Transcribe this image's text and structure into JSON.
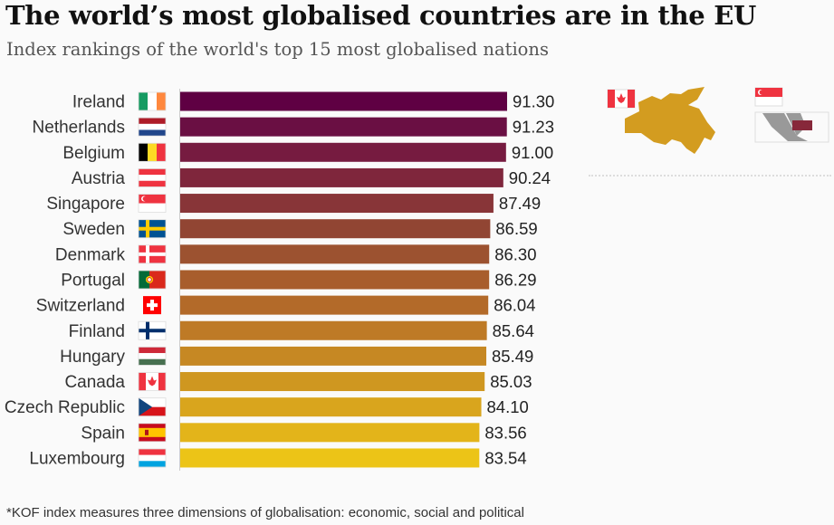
{
  "title": "The world’s most globalised countries are in the EU",
  "subtitle": "Index rankings of the world's top 15 most globalised nations",
  "footnote": "*KOF index measures three dimensions of globalisation: economic, social and political",
  "chart_data": {
    "type": "bar",
    "orientation": "horizontal",
    "title": "The world’s most globalised countries are in the EU",
    "subtitle": "Index rankings of the world's top 15 most globalised nations",
    "xlim": [
      0,
      100
    ],
    "grid": false,
    "categories": [
      "Ireland",
      "Netherlands",
      "Belgium",
      "Austria",
      "Singapore",
      "Sweden",
      "Denmark",
      "Portugal",
      "Switzerland",
      "Finland",
      "Hungary",
      "Canada",
      "Czech Republic",
      "Spain",
      "Luxembourg"
    ],
    "values": [
      91.3,
      91.23,
      91.0,
      90.24,
      87.49,
      86.59,
      86.3,
      86.29,
      86.04,
      85.64,
      85.49,
      85.03,
      84.1,
      83.56,
      83.54
    ],
    "value_labels": [
      "91.30",
      "91.23",
      "91.00",
      "90.24",
      "87.49",
      "86.59",
      "86.30",
      "86.29",
      "86.04",
      "85.64",
      "85.49",
      "85.03",
      "84.10",
      "83.56",
      "83.54"
    ],
    "colors": [
      "#5f0043",
      "#6a0f43",
      "#761b40",
      "#7f263c",
      "#883538",
      "#914533",
      "#9c5230",
      "#a85d2c",
      "#b36a29",
      "#be7a26",
      "#c68823",
      "#cf9720",
      "#d9a51d",
      "#e3b41a",
      "#ecc417"
    ],
    "flags": [
      {
        "icon": "flag-ireland-icon",
        "type": "v",
        "colors": [
          "#169b62",
          "#ffffff",
          "#ff883e"
        ]
      },
      {
        "icon": "flag-netherlands-icon",
        "type": "h",
        "colors": [
          "#ae1c28",
          "#ffffff",
          "#21468b"
        ]
      },
      {
        "icon": "flag-belgium-icon",
        "type": "v",
        "colors": [
          "#000000",
          "#fdda24",
          "#ef3340"
        ]
      },
      {
        "icon": "flag-austria-icon",
        "type": "h",
        "colors": [
          "#ef3340",
          "#ffffff",
          "#ef3340"
        ]
      },
      {
        "icon": "flag-singapore-icon",
        "type": "h2",
        "colors": [
          "#ef3340",
          "#ffffff"
        ]
      },
      {
        "icon": "flag-sweden-icon",
        "type": "cross",
        "colors": [
          "#005293",
          "#fecb00"
        ]
      },
      {
        "icon": "flag-denmark-icon",
        "type": "cross",
        "colors": [
          "#ef3340",
          "#ffffff"
        ]
      },
      {
        "icon": "flag-portugal-icon",
        "type": "pt",
        "colors": [
          "#046a38",
          "#da291c"
        ]
      },
      {
        "icon": "flag-switzerland-icon",
        "type": "ch",
        "colors": [
          "#ff0000",
          "#ffffff"
        ]
      },
      {
        "icon": "flag-finland-icon",
        "type": "cross",
        "colors": [
          "#ffffff",
          "#002f6c"
        ]
      },
      {
        "icon": "flag-hungary-icon",
        "type": "h",
        "colors": [
          "#ce2939",
          "#ffffff",
          "#477050"
        ]
      },
      {
        "icon": "flag-canada-icon",
        "type": "ca",
        "colors": [
          "#ef3340",
          "#ffffff"
        ]
      },
      {
        "icon": "flag-czech-republic-icon",
        "type": "cz",
        "colors": [
          "#ffffff",
          "#d7141a",
          "#11457e"
        ]
      },
      {
        "icon": "flag-spain-icon",
        "type": "es",
        "colors": [
          "#c60b1e",
          "#ffc400"
        ]
      },
      {
        "icon": "flag-luxembourg-icon",
        "type": "h",
        "colors": [
          "#ef3340",
          "#ffffff",
          "#00a3e0"
        ]
      }
    ]
  },
  "map_colors": {
    "land": "#cccccc",
    "border": "#f4f4f4"
  }
}
